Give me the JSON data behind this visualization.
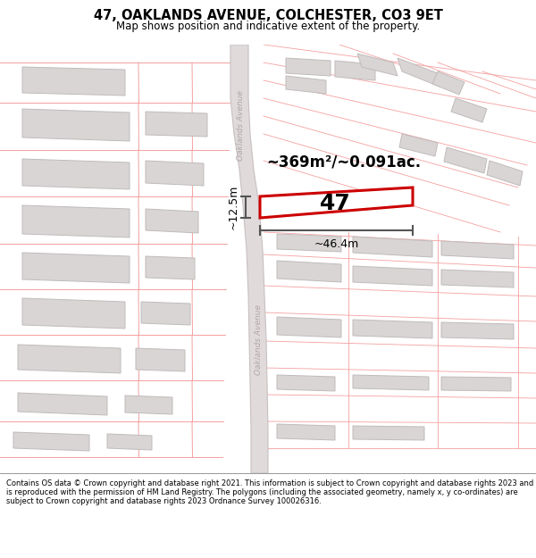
{
  "title": "47, OAKLANDS AVENUE, COLCHESTER, CO3 9ET",
  "subtitle": "Map shows position and indicative extent of the property.",
  "footer": "Contains OS data © Crown copyright and database right 2021. This information is subject to Crown copyright and database rights 2023 and is reproduced with the permission of HM Land Registry. The polygons (including the associated geometry, namely x, y co-ordinates) are subject to Crown copyright and database rights 2023 Ordnance Survey 100026316.",
  "area_label": "~369m²/~0.091ac.",
  "width_label": "~46.4m",
  "height_label": "~12.5m",
  "number_label": "47",
  "map_bg": "#f8f5f5",
  "building_fill": "#d9d5d5",
  "building_stroke": "#c0bbbb",
  "parcel_color": "#f4a0a0",
  "highlight_color": "#cc0000",
  "highlight_fill": "#ffffff",
  "road_fill": "#e0dadb",
  "road_stroke": "#c8c0c0",
  "dim_color": "#555555",
  "road_label_color": "#b0a8a8"
}
